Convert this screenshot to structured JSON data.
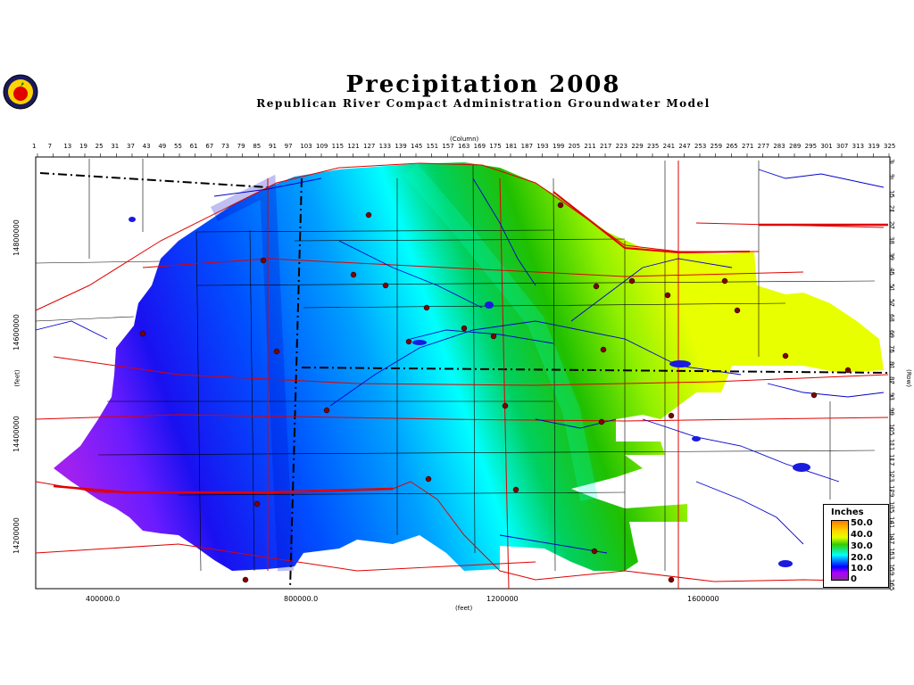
{
  "title": "Precipitation  2008",
  "subtitle": "Republican  River  Compact  Administration  Groundwater  Model",
  "column_axis_label": "(Column)",
  "row_axis_label": "(Row)",
  "x_axis_label": "(feet)",
  "y_axis_label": "(feet)",
  "column_ticks": [
    "1",
    "7",
    "13",
    "19",
    "25",
    "31",
    "37",
    "43",
    "49",
    "55",
    "61",
    "67",
    "73",
    "79",
    "85",
    "91",
    "97",
    "103",
    "109",
    "115",
    "121",
    "127",
    "133",
    "139",
    "145",
    "151",
    "157",
    "163",
    "169",
    "175",
    "181",
    "187",
    "193",
    "199",
    "205",
    "211",
    "217",
    "223",
    "229",
    "235",
    "241",
    "247",
    "253",
    "259",
    "265",
    "271",
    "277",
    "283",
    "289",
    "295",
    "301",
    "307",
    "313",
    "319",
    "325"
  ],
  "row_ticks": [
    "3",
    "9",
    "15",
    "21",
    "27",
    "33",
    "39",
    "45",
    "51",
    "57",
    "63",
    "69",
    "75",
    "81",
    "87",
    "93",
    "99",
    "105",
    "111",
    "117",
    "123",
    "129",
    "135",
    "141",
    "147",
    "153",
    "159",
    "165"
  ],
  "x_ticks": [
    "400000.0",
    "800000.0",
    "1200000",
    "1600000"
  ],
  "y_ticks": [
    "14800000",
    "14600000",
    "14400000",
    "14200000"
  ],
  "legend": {
    "title": "Inches",
    "labels": [
      "50.0",
      "40.0",
      "30.0",
      "20.0",
      "10.0",
      "0"
    ]
  },
  "colors": {
    "purple": "#a020f0",
    "blue": "#0000ff",
    "cyan": "#00ffff",
    "green": "#00c800",
    "yellow_green": "#d8ff00",
    "roads": "#e00000",
    "rivers": "#0000cc"
  }
}
